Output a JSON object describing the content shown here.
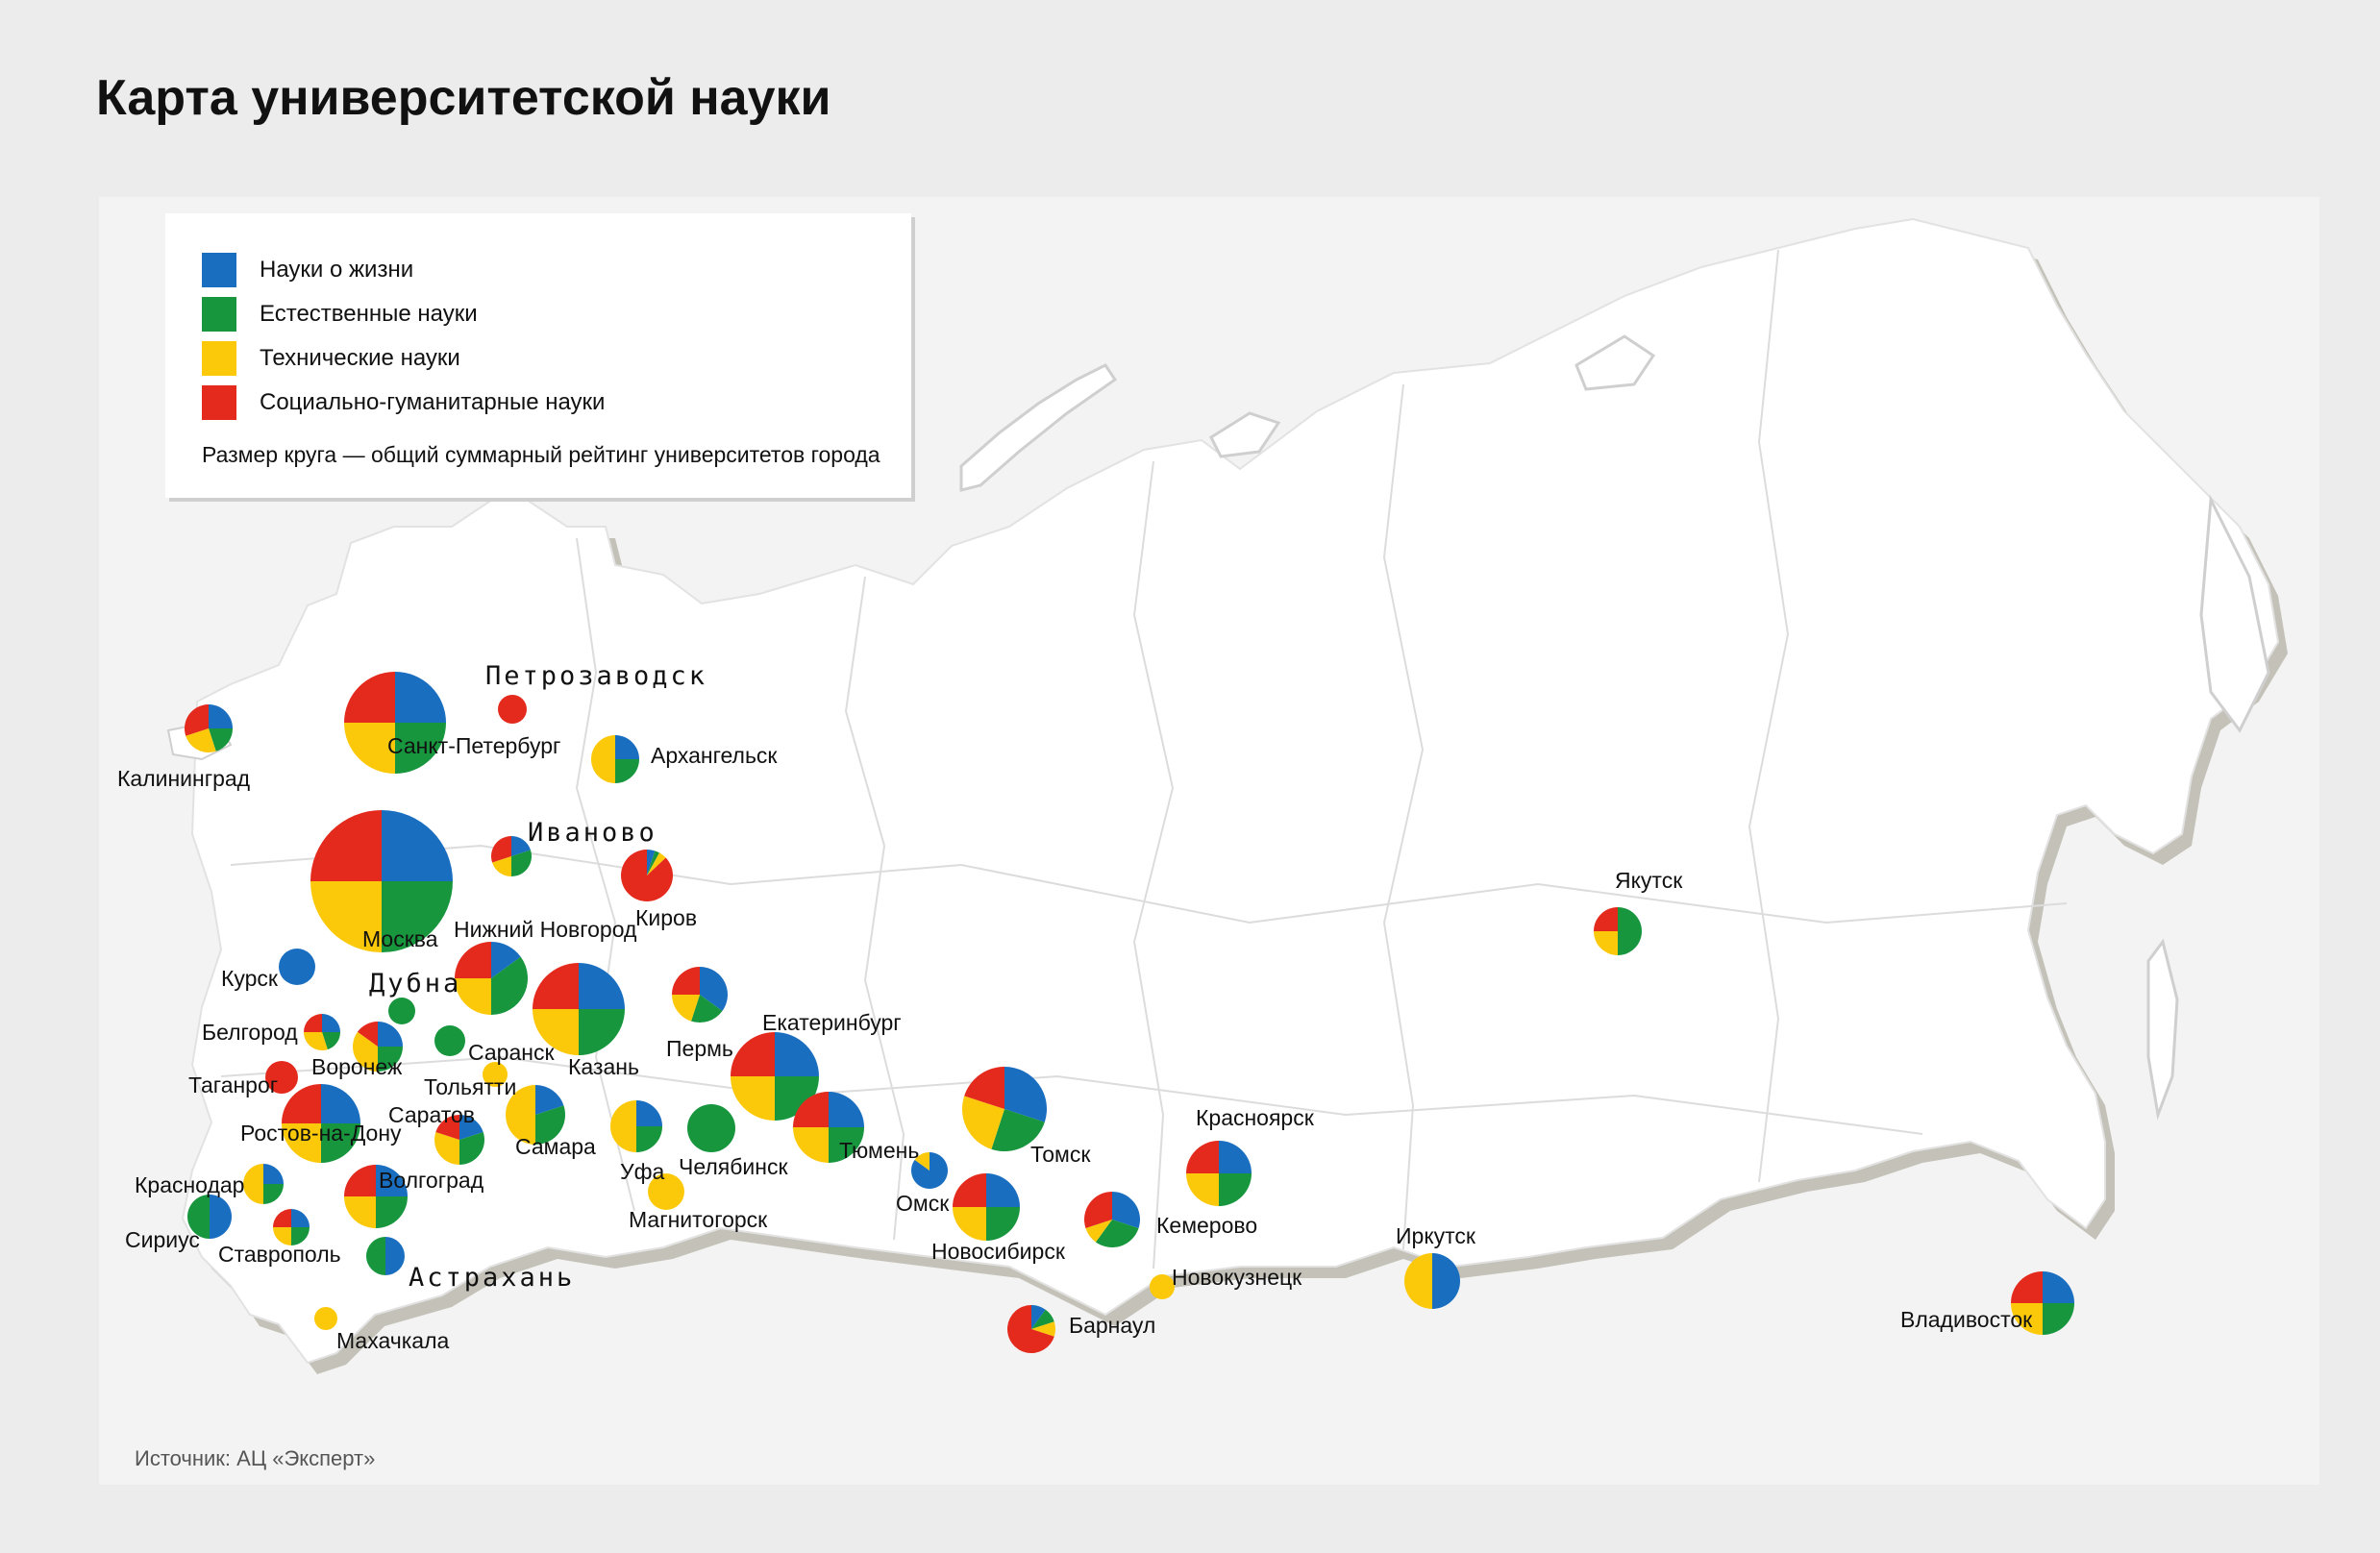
{
  "title": "Карта университетской науки",
  "legend": {
    "items": [
      {
        "label": "Науки о жизни",
        "color": "#1a6ec0"
      },
      {
        "label": "Естественные науки",
        "color": "#17963e"
      },
      {
        "label": "Технические науки",
        "color": "#fcc90a"
      },
      {
        "label": "Социально-гуманитарные науки",
        "color": "#e42a1d"
      }
    ],
    "note": "Размер круга — общий суммарный рейтинг университетов города"
  },
  "source": "Источник: АЦ «Эксперт»",
  "cities": [
    {
      "name": "Калининград",
      "shares": [
        0.25,
        0.2,
        0.25,
        0.3
      ]
    },
    {
      "name": "Санкт-Петербург",
      "shares": [
        0.25,
        0.25,
        0.25,
        0.25
      ]
    },
    {
      "name": "Петрозаводск",
      "shares": [
        0,
        0,
        0,
        1
      ]
    },
    {
      "name": "Архангельск",
      "shares": [
        0.25,
        0.25,
        0.5,
        0
      ]
    },
    {
      "name": "Москва",
      "shares": [
        0.25,
        0.25,
        0.25,
        0.25
      ]
    },
    {
      "name": "Иваново",
      "shares": [
        0.2,
        0.3,
        0.2,
        0.3
      ]
    },
    {
      "name": "Киров",
      "shares": [
        0.05,
        0.03,
        0.05,
        0.87
      ]
    },
    {
      "name": "Курск",
      "shares": [
        1,
        0,
        0,
        0
      ]
    },
    {
      "name": "Дубна",
      "shares": [
        0,
        1,
        0,
        0
      ]
    },
    {
      "name": "Нижний Новгород",
      "shares": [
        0.15,
        0.35,
        0.25,
        0.25
      ]
    },
    {
      "name": "Казань",
      "shares": [
        0.25,
        0.25,
        0.25,
        0.25
      ]
    },
    {
      "name": "Пермь",
      "shares": [
        0.35,
        0.2,
        0.2,
        0.25
      ]
    },
    {
      "name": "Белгород",
      "shares": [
        0.25,
        0.2,
        0.3,
        0.25
      ]
    },
    {
      "name": "Воронеж",
      "shares": [
        0.25,
        0.25,
        0.35,
        0.15
      ]
    },
    {
      "name": "Саранск",
      "shares": [
        0,
        1,
        0,
        0
      ]
    },
    {
      "name": "Тольятти",
      "shares": [
        0,
        0,
        1,
        0
      ]
    },
    {
      "name": "Екатеринбург",
      "shares": [
        0.25,
        0.25,
        0.25,
        0.25
      ]
    },
    {
      "name": "Таганрог",
      "shares": [
        0,
        0,
        0,
        1
      ]
    },
    {
      "name": "Ростов-на-Дону",
      "shares": [
        0.25,
        0.25,
        0.25,
        0.25
      ]
    },
    {
      "name": "Саратов",
      "shares": [
        0.2,
        0.3,
        0.3,
        0.2
      ]
    },
    {
      "name": "Самара",
      "shares": [
        0.2,
        0.3,
        0.5,
        0
      ]
    },
    {
      "name": "Уфа",
      "shares": [
        0.25,
        0.25,
        0.5,
        0
      ]
    },
    {
      "name": "Челябинск",
      "shares": [
        0,
        1,
        0,
        0
      ]
    },
    {
      "name": "Тюмень",
      "shares": [
        0.25,
        0.25,
        0.25,
        0.25
      ]
    },
    {
      "name": "Томск",
      "shares": [
        0.3,
        0.25,
        0.25,
        0.2
      ]
    },
    {
      "name": "Краснодар",
      "shares": [
        0.25,
        0.25,
        0.5,
        0
      ]
    },
    {
      "name": "Волгоград",
      "shares": [
        0.25,
        0.25,
        0.25,
        0.25
      ]
    },
    {
      "name": "Магнитогорск",
      "shares": [
        0,
        0,
        1,
        0
      ]
    },
    {
      "name": "Омск",
      "shares": [
        0.85,
        0,
        0.15,
        0
      ]
    },
    {
      "name": "Новосибирск",
      "shares": [
        0.25,
        0.25,
        0.25,
        0.25
      ]
    },
    {
      "name": "Кемерово",
      "shares": [
        0.3,
        0.3,
        0.1,
        0.3
      ]
    },
    {
      "name": "Красноярск",
      "shares": [
        0.25,
        0.25,
        0.25,
        0.25
      ]
    },
    {
      "name": "Якутск",
      "shares": [
        0,
        0.5,
        0.25,
        0.25
      ]
    },
    {
      "name": "Сириус",
      "shares": [
        0.5,
        0.5,
        0,
        0
      ]
    },
    {
      "name": "Ставрополь",
      "shares": [
        0.25,
        0.25,
        0.25,
        0.25
      ]
    },
    {
      "name": "Астрахань",
      "shares": [
        0.5,
        0.5,
        0,
        0
      ]
    },
    {
      "name": "Махачкала",
      "shares": [
        0,
        0,
        1,
        0
      ]
    },
    {
      "name": "Новокузнецк",
      "shares": [
        0,
        0,
        1,
        0
      ]
    },
    {
      "name": "Иркутск",
      "shares": [
        0.5,
        0,
        0.5,
        0
      ]
    },
    {
      "name": "Барнаул",
      "shares": [
        0.1,
        0.1,
        0.1,
        0.7
      ]
    },
    {
      "name": "Владивосток",
      "shares": [
        0.25,
        0.25,
        0.25,
        0.25
      ]
    }
  ]
}
